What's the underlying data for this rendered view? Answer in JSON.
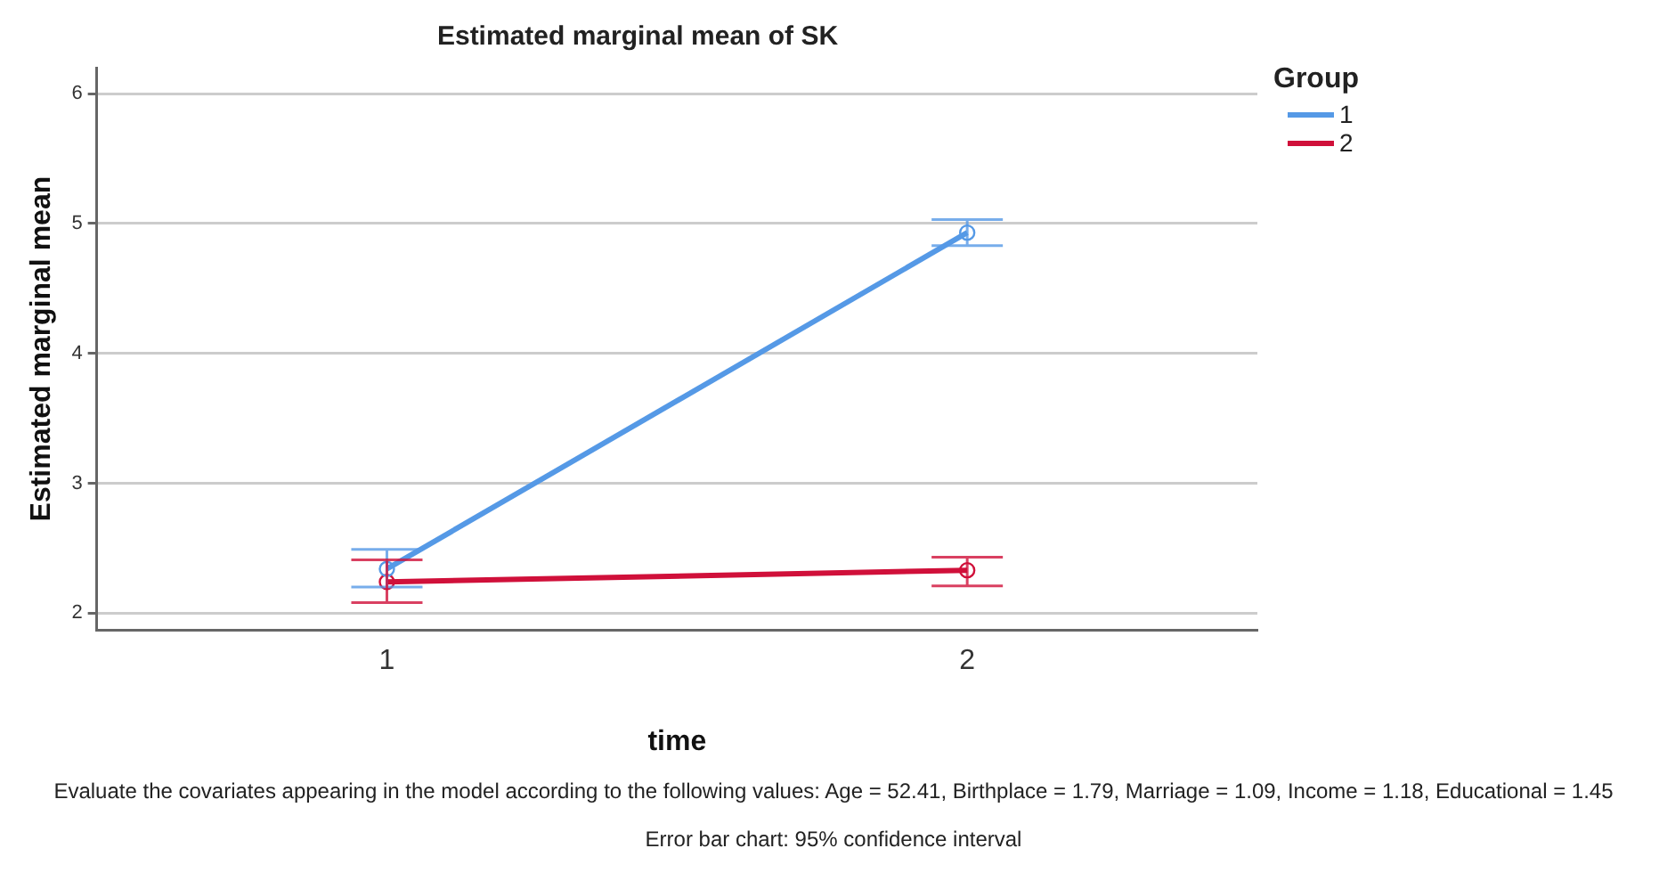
{
  "chart_data": {
    "type": "line",
    "title": "Estimated marginal mean of SK",
    "xlabel": "time",
    "ylabel": "Estimated marginal mean",
    "legend_title": "Group",
    "categories": [
      "1",
      "2"
    ],
    "series": [
      {
        "name": "1",
        "color": "#5599e6",
        "values": [
          2.34,
          4.93
        ],
        "errors": [
          [
            2.2,
            2.49
          ],
          [
            4.83,
            5.03
          ]
        ]
      },
      {
        "name": "2",
        "color": "#d0103a",
        "values": [
          2.24,
          2.33
        ],
        "errors": [
          [
            2.08,
            2.41
          ],
          [
            2.21,
            2.43
          ]
        ]
      }
    ],
    "ylim": [
      1.87,
      6.2
    ],
    "yticks": [
      2,
      3,
      4,
      5,
      6
    ],
    "grid": "y",
    "legend": "top right",
    "marker": "circle",
    "line_style": "solid",
    "annotations": [
      "Evaluate the covariates appearing in the model according to the following values: Age = 52.41, Birthplace = 1.79, Marriage = 1.09, Income = 1.18, Educational = 1.45",
      "Error bar chart: 95% confidence interval"
    ]
  }
}
